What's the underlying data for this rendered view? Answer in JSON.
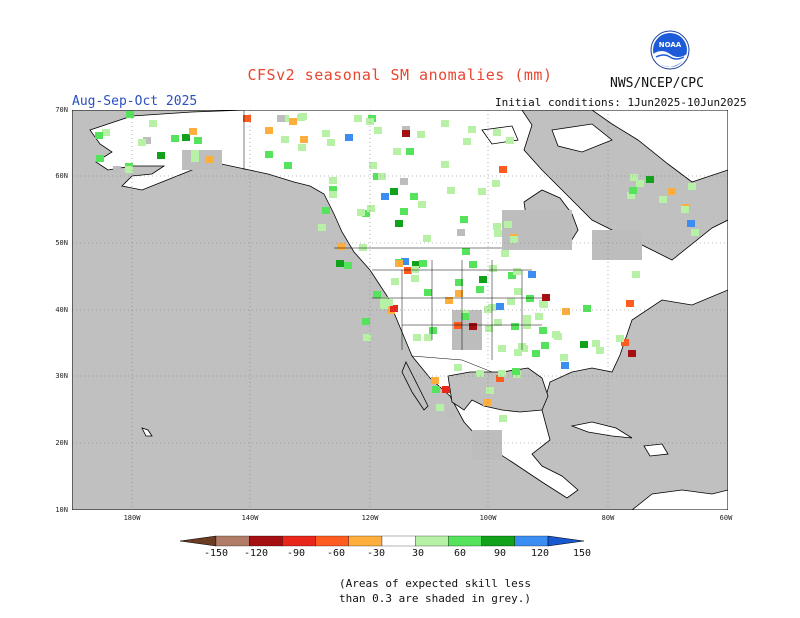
{
  "title": "CFSv2 seasonal SM anomalies (mm)",
  "agency": "NWS/NCEP/CPC",
  "logo_text": "NOAA",
  "period": "Aug-Sep-Oct 2025",
  "initial_conditions": "Initial conditions: 1Jun2025-10Jun2025",
  "lat_labels": [
    "70N",
    "60N",
    "50N",
    "40N",
    "30N",
    "20N",
    "10N"
  ],
  "lon_labels": [
    "180W",
    "140W",
    "120W",
    "100W",
    "80W",
    "60W"
  ],
  "colorbar": {
    "labels": [
      "-150",
      "-120",
      "-90",
      "-60",
      "-30",
      "30",
      "60",
      "90",
      "120",
      "150"
    ],
    "colors": [
      "#6b3b22",
      "#b07c68",
      "#a50f12",
      "#e8261a",
      "#fe5b20",
      "#fdae3c",
      "#ffffff",
      "#b7f1a6",
      "#54e35a",
      "#11a11a",
      "#3b8df2",
      "#1757cf"
    ]
  },
  "note_line1": "(Areas of expected skill less",
  "note_line2": "than 0.3 are shaded in grey.)",
  "colors": {
    "ocean": "#c0c0c0",
    "land": "#ffffff",
    "grid": "#7a7a7a",
    "coast": "#000000",
    "low_skill": "#bdbdbd"
  }
}
